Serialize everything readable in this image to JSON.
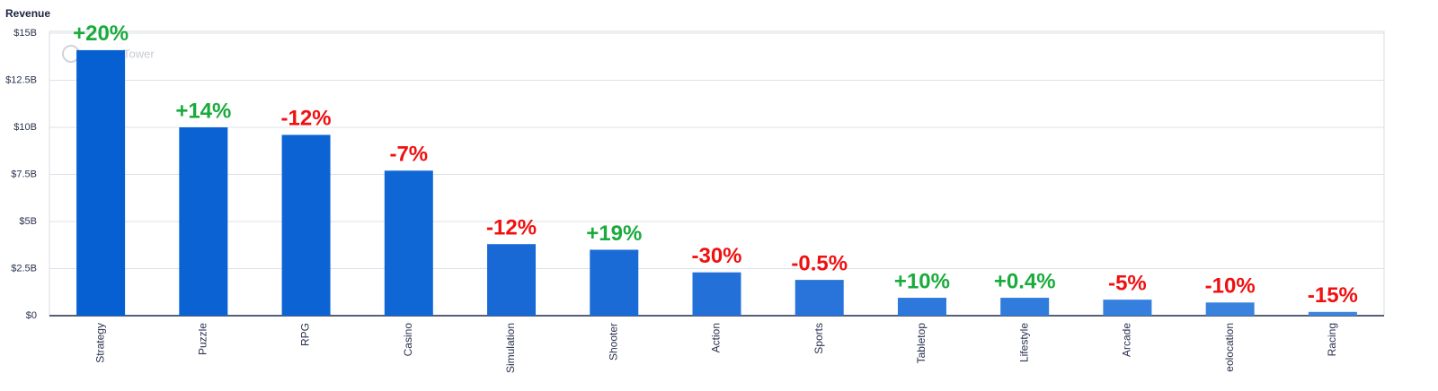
{
  "chart_data": {
    "type": "bar",
    "y_label": "Revenue",
    "watermark": "Tower",
    "categories": [
      "Strategy",
      "Puzzle",
      "RPG",
      "Casino",
      "Simulation",
      "Shooter",
      "Action",
      "Sports",
      "Tabletop",
      "Lifestyle",
      "Arcade",
      "eolocation",
      "Racing"
    ],
    "values": [
      14.1,
      10.0,
      9.6,
      7.7,
      3.8,
      3.5,
      2.3,
      1.9,
      0.95,
      0.95,
      0.85,
      0.7,
      0.2
    ],
    "colors": [
      "#0760d2",
      "#0a62d3",
      "#0c64d4",
      "#0f66d5",
      "#1868d6",
      "#1b6bd7",
      "#2470d9",
      "#2874da",
      "#2c78dc",
      "#307cdd",
      "#3580de",
      "#3983df",
      "#3d86e0"
    ],
    "growth": {
      "values": [
        20,
        14,
        -12,
        -7,
        -12,
        19,
        -30,
        -0.5,
        10,
        0.4,
        -5,
        -10,
        -15
      ],
      "value_labels": [
        "+20%",
        "+14%",
        "-12%",
        "-7%",
        "-12%",
        "+19%",
        "-30%",
        "-0.5%",
        "+10%",
        "+0.4%",
        "-5%",
        "-10%",
        "-15%"
      ],
      "positive_color": "#1aab3c",
      "negative_color": "#f01010"
    },
    "ylim": [
      0,
      15
    ],
    "yticks": [
      {
        "value": 0,
        "label": "$0"
      },
      {
        "value": 2.5,
        "label": "$2.5B"
      },
      {
        "value": 5,
        "label": "$5B"
      },
      {
        "value": 7.5,
        "label": "$7.5B"
      },
      {
        "value": 10,
        "label": "$10B"
      },
      {
        "value": 12.5,
        "label": "$12.5B"
      },
      {
        "value": 15,
        "label": "$15B"
      }
    ],
    "grid": true
  }
}
